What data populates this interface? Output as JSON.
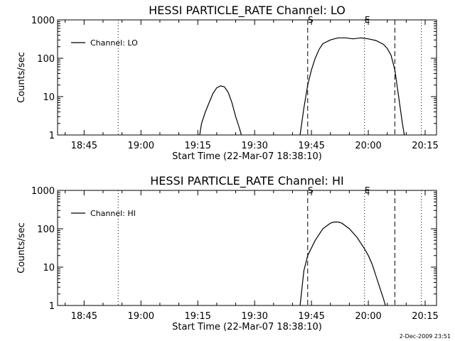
{
  "footer": {
    "stamp": "2-Dec-2009 23:51"
  },
  "chart_data": [
    {
      "type": "line",
      "title": "HESSI PARTICLE_RATE Channel: LO",
      "xlabel": "Start Time (22-Mar-07 18:38:10)",
      "ylabel": "Counts/sec",
      "y_scale": "log",
      "ylim": [
        1,
        1000
      ],
      "xlim": [
        "18:38",
        "20:18"
      ],
      "x_ticks": [
        "18:45",
        "19:00",
        "19:15",
        "19:30",
        "19:45",
        "20:00",
        "20:15"
      ],
      "y_ticks": [
        "1",
        "10",
        "100",
        "1000"
      ],
      "legend": {
        "position": "top-left",
        "label": "Channel: LO"
      },
      "markers": [
        {
          "time": "18:54",
          "style": "dotted",
          "label": ""
        },
        {
          "time": "19:44",
          "style": "dashed",
          "label": "S"
        },
        {
          "time": "19:59",
          "style": "dotted",
          "label": "E"
        },
        {
          "time": "20:07",
          "style": "dashed",
          "label": ""
        },
        {
          "time": "20:14",
          "style": "dotted",
          "label": ""
        }
      ],
      "series": [
        {
          "name": "Channel: LO",
          "segments": [
            [
              [
                "19:15.5",
                1
              ],
              [
                "19:16",
                2
              ],
              [
                "19:17",
                4
              ],
              [
                "19:18",
                7
              ],
              [
                "19:19",
                12
              ],
              [
                "19:20",
                17
              ],
              [
                "19:21",
                19
              ],
              [
                "19:22",
                18
              ],
              [
                "19:23",
                13
              ],
              [
                "19:24",
                7
              ],
              [
                "19:25",
                3
              ],
              [
                "19:26",
                1.5
              ],
              [
                "19:26.5",
                1
              ]
            ],
            [
              [
                "19:42",
                1
              ],
              [
                "19:43",
                5
              ],
              [
                "19:44",
                20
              ],
              [
                "19:45",
                50
              ],
              [
                "19:46",
                100
              ],
              [
                "19:47",
                170
              ],
              [
                "19:48",
                240
              ],
              [
                "19:50",
                300
              ],
              [
                "19:52",
                340
              ],
              [
                "19:54",
                340
              ],
              [
                "19:56",
                320
              ],
              [
                "19:58",
                340
              ],
              [
                "20:00",
                320
              ],
              [
                "20:02",
                290
              ],
              [
                "20:04",
                230
              ],
              [
                "20:05",
                180
              ],
              [
                "20:06",
                120
              ],
              [
                "20:07",
                50
              ],
              [
                "20:08",
                10
              ],
              [
                "20:09",
                2
              ],
              [
                "20:09.5",
                1
              ]
            ]
          ]
        }
      ]
    },
    {
      "type": "line",
      "title": "HESSI PARTICLE_RATE Channel: HI",
      "xlabel": "Start Time (22-Mar-07 18:38:10)",
      "ylabel": "Counts/sec",
      "y_scale": "log",
      "ylim": [
        1,
        1000
      ],
      "xlim": [
        "18:38",
        "20:18"
      ],
      "x_ticks": [
        "18:45",
        "19:00",
        "19:15",
        "19:30",
        "19:45",
        "20:00",
        "20:15"
      ],
      "y_ticks": [
        "1",
        "10",
        "100",
        "1000"
      ],
      "legend": {
        "position": "top-left",
        "label": "Channel: HI"
      },
      "markers": [
        {
          "time": "18:54",
          "style": "dotted",
          "label": ""
        },
        {
          "time": "19:44",
          "style": "dashed",
          "label": "S"
        },
        {
          "time": "19:59",
          "style": "dotted",
          "label": "E"
        },
        {
          "time": "20:07",
          "style": "dashed",
          "label": ""
        },
        {
          "time": "20:14",
          "style": "dotted",
          "label": ""
        }
      ],
      "series": [
        {
          "name": "Channel: HI",
          "segments": [
            [
              [
                "19:42",
                1
              ],
              [
                "19:43",
                8
              ],
              [
                "19:44",
                20
              ],
              [
                "19:46",
                50
              ],
              [
                "19:48",
                100
              ],
              [
                "19:50",
                140
              ],
              [
                "19:51",
                150
              ],
              [
                "19:52",
                150
              ],
              [
                "19:53",
                140
              ],
              [
                "19:55",
                100
              ],
              [
                "19:57",
                60
              ],
              [
                "19:59",
                30
              ],
              [
                "20:00",
                20
              ],
              [
                "20:01",
                12
              ],
              [
                "20:02",
                6
              ],
              [
                "20:03",
                3
              ],
              [
                "20:04",
                1.5
              ],
              [
                "20:04.5",
                1
              ]
            ]
          ]
        }
      ]
    }
  ]
}
